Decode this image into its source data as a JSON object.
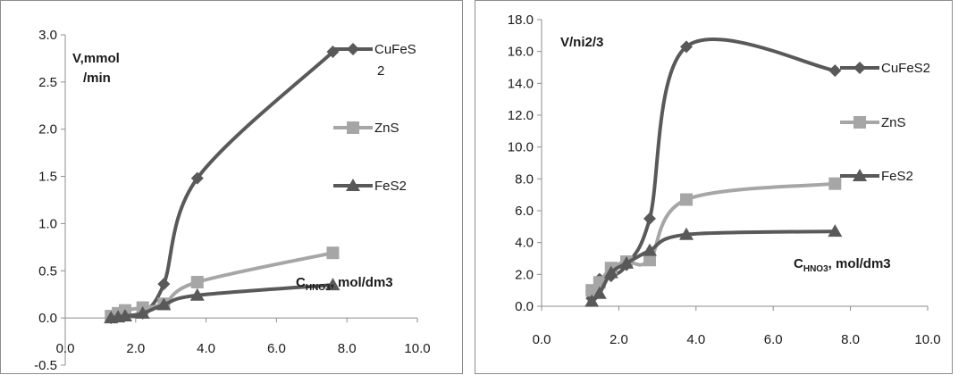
{
  "chart_data": [
    {
      "type": "scatter",
      "title": "",
      "ylabel": "V,mmol /min",
      "xlabel": "CHNO3, mol/dm3",
      "xlabel_main": "C",
      "xlabel_sub": "HNO3",
      "xlabel_rest": ", mol/dm3",
      "xlim": [
        0,
        10
      ],
      "ylim": [
        -0.5,
        3.0
      ],
      "xticks": [
        0.0,
        2.0,
        4.0,
        6.0,
        8.0,
        10.0
      ],
      "yticks": [
        -0.5,
        0.0,
        0.5,
        1.0,
        1.5,
        2.0,
        2.5,
        3.0
      ],
      "xtick_labels": [
        "0.0",
        "2.0",
        "4.0",
        "6.0",
        "8.0",
        "10.0"
      ],
      "ytick_labels": [
        "-0.5",
        "0.0",
        "0.5",
        "1.0",
        "1.5",
        "2.0",
        "2.5",
        "3.0"
      ],
      "grid": false,
      "legend": "right",
      "legend_labels": {
        "CuFeS2": "CuFeS",
        "CuFeS2_wrap": "2",
        "ZnS": "ZnS",
        "FeS2": "FeS2"
      },
      "series": [
        {
          "name": "CuFeS2",
          "marker": "diamond",
          "color": "#595959",
          "x": [
            1.3,
            1.5,
            1.7,
            2.2,
            2.8,
            3.75,
            7.6
          ],
          "y": [
            0.0,
            0.02,
            0.03,
            0.05,
            0.36,
            1.48,
            2.82
          ]
        },
        {
          "name": "ZnS",
          "marker": "square",
          "color": "#a6a6a6",
          "x": [
            1.3,
            1.5,
            1.7,
            2.2,
            2.8,
            3.75,
            7.6
          ],
          "y": [
            0.02,
            0.05,
            0.08,
            0.11,
            0.15,
            0.38,
            0.69
          ]
        },
        {
          "name": "FeS2",
          "marker": "triangle",
          "color": "#595959",
          "x": [
            1.3,
            1.5,
            1.7,
            2.2,
            2.8,
            3.75,
            7.6
          ],
          "y": [
            0.0,
            0.01,
            0.02,
            0.05,
            0.14,
            0.24,
            0.35
          ]
        }
      ]
    },
    {
      "type": "scatter",
      "title": "",
      "ylabel": "V/ni2/3",
      "xlabel": "CHNO3, mol/dm3",
      "xlabel_main": "C",
      "xlabel_sub": "HNO3",
      "xlabel_rest": ", mol/dm3",
      "xlim": [
        0,
        10
      ],
      "ylim": [
        0,
        18
      ],
      "xticks": [
        0.0,
        2.0,
        4.0,
        6.0,
        8.0,
        10.0
      ],
      "yticks": [
        0,
        2,
        4,
        6,
        8,
        10,
        12,
        14,
        16,
        18
      ],
      "xtick_labels": [
        "0.0",
        "2.0",
        "4.0",
        "6.0",
        "8.0",
        "10.0"
      ],
      "ytick_labels": [
        "0.0",
        "2.0",
        "4.0",
        "6.0",
        "8.0",
        "10.0",
        "12.0",
        "14.0",
        "16.0",
        "18.0"
      ],
      "grid": false,
      "legend": "right",
      "legend_labels": {
        "CuFeS2": "CuFeS2",
        "ZnS": "ZnS",
        "FeS2": "FeS2"
      },
      "series": [
        {
          "name": "CuFeS2",
          "marker": "diamond",
          "color": "#595959",
          "x": [
            1.3,
            1.5,
            1.8,
            2.2,
            2.8,
            3.75,
            7.6
          ],
          "y": [
            0.5,
            1.7,
            1.9,
            2.6,
            5.5,
            16.3,
            14.8
          ]
        },
        {
          "name": "ZnS",
          "marker": "square",
          "color": "#a6a6a6",
          "x": [
            1.3,
            1.5,
            1.8,
            2.2,
            2.8,
            3.75,
            7.6
          ],
          "y": [
            1.0,
            1.5,
            2.4,
            2.8,
            2.9,
            6.7,
            7.7
          ]
        },
        {
          "name": "FeS2",
          "marker": "triangle",
          "color": "#595959",
          "x": [
            1.3,
            1.5,
            1.8,
            2.2,
            2.8,
            3.75,
            7.6
          ],
          "y": [
            0.3,
            0.8,
            2.1,
            2.7,
            3.5,
            4.5,
            4.7
          ]
        }
      ]
    }
  ]
}
